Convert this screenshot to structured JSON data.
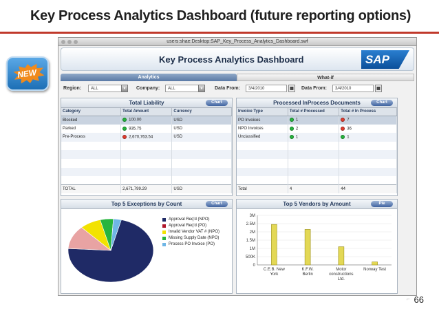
{
  "slide": {
    "title": "Key Process Analytics Dashboard (future reporting options)",
    "badge": "NEW",
    "page_number": "66"
  },
  "window": {
    "title": "users:shae:Desktop:SAP_Key_Process_Analytics_Dashboard.swf"
  },
  "header": {
    "title": "Key Process Analytics Dashboard",
    "logo": "SAP"
  },
  "tabs": [
    {
      "label": "Analytics"
    },
    {
      "label": "What-if"
    }
  ],
  "filters": {
    "region_label": "Region:",
    "region_value": "ALL",
    "company_label": "Company:",
    "company_value": "ALL",
    "from_label_1": "Data From:",
    "from_value_1": "3/4/2010",
    "from_label_2": "Data From:",
    "from_value_2": "3/4/2010"
  },
  "liability": {
    "title": "Total Liability",
    "button": "Chart",
    "columns": [
      "Category",
      "Total Amount",
      "Currency"
    ],
    "rows": [
      {
        "category": "Blocked",
        "status": "green",
        "amount": "100.00",
        "currency": "USD"
      },
      {
        "category": "Parked",
        "status": "green",
        "amount": "935.75",
        "currency": "USD"
      },
      {
        "category": "Pre-Process",
        "status": "red",
        "amount": "2,670,763.54",
        "currency": "USD"
      }
    ],
    "total": {
      "label": "TOTAL",
      "amount": "2,671,799.29",
      "currency": "USD"
    }
  },
  "inprocess": {
    "title": "Processed InProcess Documents",
    "button": "Chart",
    "columns": [
      "Invoice Type",
      "Total # Processed",
      "Total # In Process"
    ],
    "rows": [
      {
        "type": "PO Invoices",
        "p_status": "green",
        "processed": "1",
        "i_status": "red",
        "in_process": "7"
      },
      {
        "type": "NPO Invoices",
        "p_status": "green",
        "processed": "2",
        "i_status": "red",
        "in_process": "36"
      },
      {
        "type": "Unclassified",
        "p_status": "green",
        "processed": "1",
        "i_status": "green",
        "in_process": "1"
      }
    ],
    "total": {
      "label": "Total",
      "processed": "4",
      "in_process": "44"
    }
  },
  "exceptions": {
    "title": "Top 5 Exceptions by Count",
    "button": "Chart",
    "legend": [
      {
        "label": "Approval Req'd (NPO)",
        "color": "#1f2a66"
      },
      {
        "label": "Approval Req'd (PO)",
        "color": "#b0162a"
      },
      {
        "label": "Invalid Vendor VAT # (NPO)",
        "color": "#f2e200"
      },
      {
        "label": "Missing Supply Date (NPO)",
        "color": "#27b53e"
      },
      {
        "label": "Process PO Invoice (PO)",
        "color": "#6fb6e6"
      }
    ]
  },
  "vendors": {
    "title": "Top 5 Vendors by Amount",
    "button": "Pie"
  },
  "chart_data": [
    {
      "type": "pie",
      "title": "Top 5 Exceptions by Count",
      "categories": [
        "Approval Req'd (NPO)",
        "Approval Req'd (PO)",
        "Invalid Vendor VAT # (NPO)",
        "Missing Supply Date (NPO)",
        "Process PO Invoice (PO)"
      ],
      "values": [
        72,
        12,
        8,
        5,
        3
      ],
      "colors": [
        "#1f2a66",
        "#e8a3a3",
        "#f2e200",
        "#27b53e",
        "#6fb6e6"
      ],
      "legend": "right"
    },
    {
      "type": "bar",
      "title": "Top 5 Vendors by Amount",
      "categories": [
        "C.E.B. New York",
        "K.F.W. Berlin",
        "Motor constructions Ltd.",
        "Norway Test"
      ],
      "values": [
        2450000,
        2150000,
        1100000,
        180000
      ],
      "ylim": [
        0,
        3000000
      ],
      "yticks": [
        "0",
        "500K",
        "1M",
        "1.5M",
        "2M",
        "2.5M",
        "3M"
      ],
      "grid": true
    }
  ]
}
